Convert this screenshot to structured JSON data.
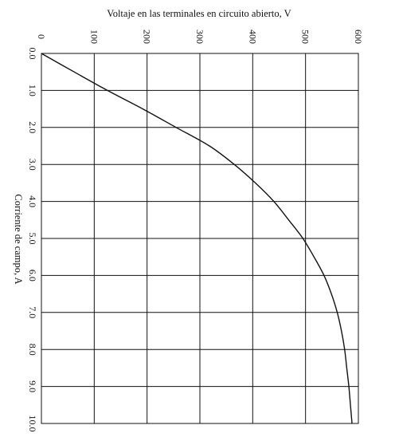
{
  "chart_data": {
    "type": "line",
    "title": "",
    "xlabel": "Corriente de campo, A",
    "ylabel": "Voltaje en las terminales en circuito abierto, V",
    "xlim": [
      0,
      10
    ],
    "ylim": [
      0,
      600
    ],
    "x_tick_labels": [
      "0.0",
      "1.0",
      "2.0",
      "3.0",
      "4.0",
      "5.0",
      "6.0",
      "7.0",
      "8.0",
      "9.0",
      "10.0"
    ],
    "y_tick_labels": [
      "0",
      "100",
      "200",
      "300",
      "400",
      "500",
      "600"
    ],
    "grid": true,
    "orientation": "rotated 90° clockwise (current axis runs downward, voltage axis runs rightward)",
    "series": [
      {
        "x": [
          0,
          0.5,
          1.0,
          1.5,
          2.0,
          2.5,
          3.0,
          3.5,
          4.0,
          4.5,
          5.0,
          5.5,
          6.0,
          6.5,
          7.0,
          7.5,
          8.0,
          8.5,
          9.0,
          9.5,
          10.0
        ],
        "y": [
          0,
          62,
          125,
          192,
          255,
          318,
          365,
          405,
          440,
          468,
          495,
          516,
          535,
          549,
          560,
          568,
          574,
          578,
          582,
          585,
          588
        ]
      }
    ]
  }
}
